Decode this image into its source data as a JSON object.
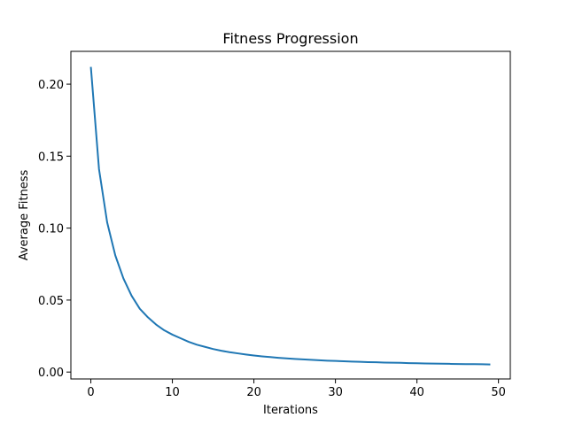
{
  "chart_data": {
    "type": "line",
    "title": "Fitness Progression",
    "xlabel": "Iterations",
    "ylabel": "Average Fitness",
    "xlim": [
      -2.45,
      51.45
    ],
    "ylim": [
      -0.0048,
      0.2228
    ],
    "xticks": [
      0,
      10,
      20,
      30,
      40,
      50
    ],
    "xtick_labels": [
      "0",
      "10",
      "20",
      "30",
      "40",
      "50"
    ],
    "yticks": [
      0.0,
      0.05,
      0.1,
      0.15,
      0.2
    ],
    "ytick_labels": [
      "0.00",
      "0.05",
      "0.10",
      "0.15",
      "0.20"
    ],
    "grid": false,
    "series": [
      {
        "color": "#1f77b4",
        "x": [
          0,
          1,
          2,
          3,
          4,
          5,
          6,
          7,
          8,
          9,
          10,
          11,
          12,
          13,
          14,
          15,
          16,
          17,
          18,
          19,
          20,
          21,
          22,
          23,
          24,
          25,
          26,
          27,
          28,
          29,
          30,
          31,
          32,
          33,
          34,
          35,
          36,
          37,
          38,
          39,
          40,
          41,
          42,
          43,
          44,
          45,
          46,
          47,
          48,
          49
        ],
        "y": [
          0.212,
          0.141,
          0.104,
          0.081,
          0.065,
          0.053,
          0.044,
          0.038,
          0.033,
          0.029,
          0.026,
          0.0235,
          0.021,
          0.019,
          0.0175,
          0.016,
          0.0148,
          0.0138,
          0.013,
          0.0122,
          0.0115,
          0.0109,
          0.0104,
          0.0099,
          0.0095,
          0.0091,
          0.0088,
          0.0085,
          0.0082,
          0.0079,
          0.0077,
          0.0075,
          0.0073,
          0.0071,
          0.0069,
          0.0068,
          0.0066,
          0.0065,
          0.0064,
          0.0062,
          0.0061,
          0.006,
          0.0059,
          0.0058,
          0.0057,
          0.0056,
          0.0055,
          0.0055,
          0.0054,
          0.0053
        ]
      }
    ]
  }
}
